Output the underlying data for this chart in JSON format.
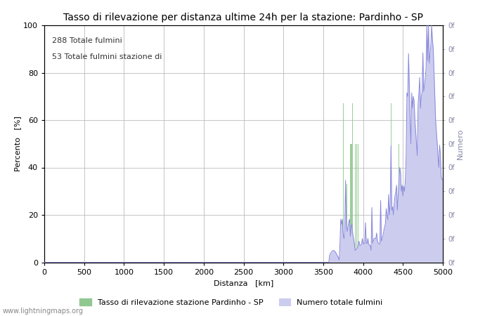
{
  "title": "Tasso di rilevazione per distanza ultime 24h per la stazione: Pardinho - SP",
  "xlabel": "Distanza   [km]",
  "ylabel_left": "Percento   [%]",
  "ylabel_right": "Numero",
  "annotation_line1": "288 Totale fulmini",
  "annotation_line2": "53 Totale fulmini stazione di",
  "legend_green": "Tasso di rilevazione stazione Pardinho - SP",
  "legend_blue": "Numero totale fulmini",
  "watermark": "www.lightningmaps.org",
  "xlim": [
    0,
    5000
  ],
  "ylim_left": [
    0,
    100
  ],
  "green_color": "#90c890",
  "blue_color": "#8888dd",
  "blue_fill": "#ccccee",
  "background_color": "#ffffff",
  "grid_color": "#bbbbbb",
  "title_fontsize": 10,
  "label_fontsize": 8,
  "tick_fontsize": 8
}
